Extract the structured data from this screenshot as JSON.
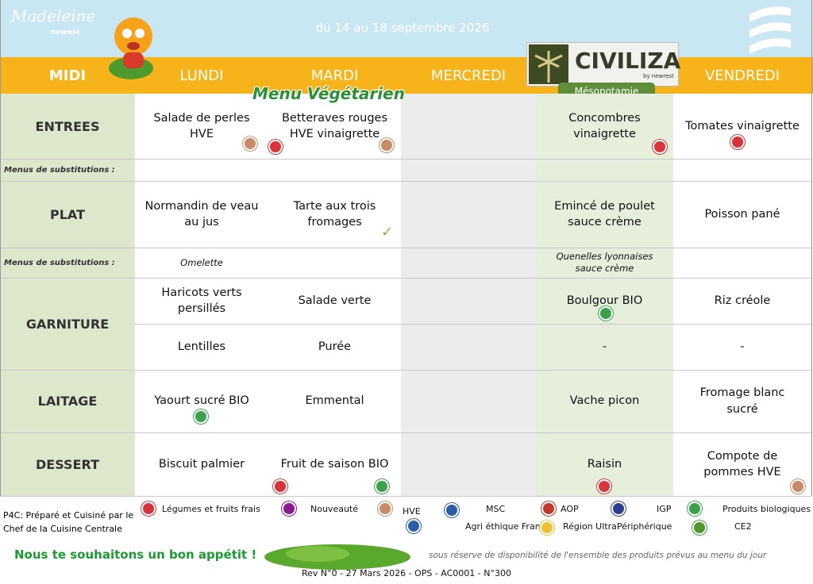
{
  "header": {
    "brand": "Madeleine",
    "brand_sub": "newest",
    "dates": "du 14 au 18 septembre 2026"
  },
  "menu": {
    "corner": "MIDI",
    "days": [
      "LUNDI",
      "MARDI",
      "MERCREDI",
      null,
      "VENDREDI"
    ],
    "theme": {
      "brand": "CIVILIZA",
      "brand_sub": "by newrest",
      "name": "Mésopotamie"
    },
    "banner": "Menu Végétarien",
    "rows": [
      {
        "label": "ENTREES",
        "lines": [
          [
            "Salade de perles HVE",
            "Betteraves rouges HVE vinaigrette",
            null,
            "Concombres vinaigrette",
            "Tomates vinaigrette"
          ]
        ]
      },
      {
        "label": "Menus de substitutions :",
        "lines": [
          [
            null,
            null,
            null,
            null,
            null
          ]
        ]
      },
      {
        "label": "PLAT",
        "lines": [
          [
            "Normandin de veau au jus",
            "Tarte aux trois fromages",
            null,
            "Emincé de poulet sauce crème",
            "Poisson pané"
          ]
        ]
      },
      {
        "label": "Menus de substitutions :",
        "lines": [
          [
            "Omelette",
            null,
            null,
            "Quenelles lyonnaises sauce crème",
            null
          ]
        ]
      },
      {
        "label": "GARNITURE",
        "lines": [
          [
            "Haricots verts persillés",
            "Salade verte",
            null,
            "Boulgour BIO",
            "Riz créole"
          ],
          [
            "Lentilles",
            "Purée",
            null,
            "-",
            "-"
          ]
        ]
      },
      {
        "label": "LAITAGE",
        "lines": [
          [
            "Yaourt sucré BIO",
            "Emmental",
            null,
            "Vache picon",
            "Fromage blanc sucré"
          ]
        ]
      },
      {
        "label": "DESSERT",
        "lines": [
          [
            "Biscuit palmier",
            "Fruit de saison BIO",
            null,
            "Raisin",
            "Compote de pommes HVE"
          ]
        ]
      }
    ]
  },
  "legend": {
    "p4c": "P4C:  Préparé et  Cuisiné par le Chef de la Cuisine Centrale",
    "items": [
      "Légumes et fruits frais",
      "Nouveauté",
      "HVE",
      "MSC",
      "AOP",
      "IGP",
      "Produits biologiques",
      "Agri éthique France",
      "Région UltraPériphérique",
      "CE2"
    ]
  },
  "footer": {
    "greeting": "Nous te souhaitons un bon appétit !",
    "disclaimer": "sous réserve de disponibilité de l'ensemble des produits prévus au menu du jour",
    "revision": "Rev N°0 - 27 Mars 2026 - OPS - AC0001 - N°300"
  }
}
